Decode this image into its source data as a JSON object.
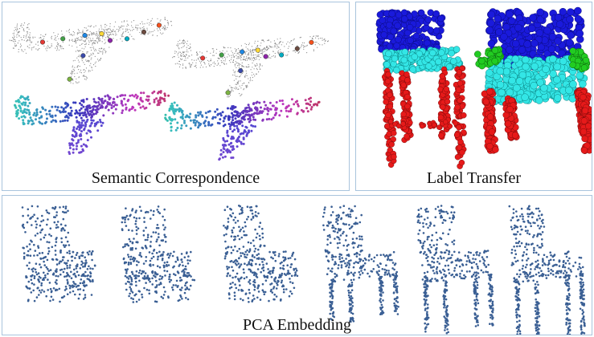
{
  "panels": {
    "semantic": {
      "caption": "Semantic Correspondence"
    },
    "label": {
      "caption": "Label Transfer"
    },
    "pca": {
      "caption": "PCA Embedding"
    }
  },
  "colors": {
    "panel_border": "#a9c4dd",
    "chair_back": "#1a1adb",
    "chair_seat": "#33e6e6",
    "chair_legs": "#e61a1a",
    "chair_arms": "#22cc22",
    "pca_point": "#3a5f94",
    "plane_gray": "#8a8a8a"
  },
  "keypoint_colors": [
    "#e53935",
    "#43a047",
    "#1e88e5",
    "#fdd835",
    "#8e24aa",
    "#00acc1",
    "#6d4c41",
    "#f4511e",
    "#3949ab",
    "#7cb342"
  ],
  "icons": [
    "airplane-point-cloud",
    "chair-point-cloud"
  ]
}
